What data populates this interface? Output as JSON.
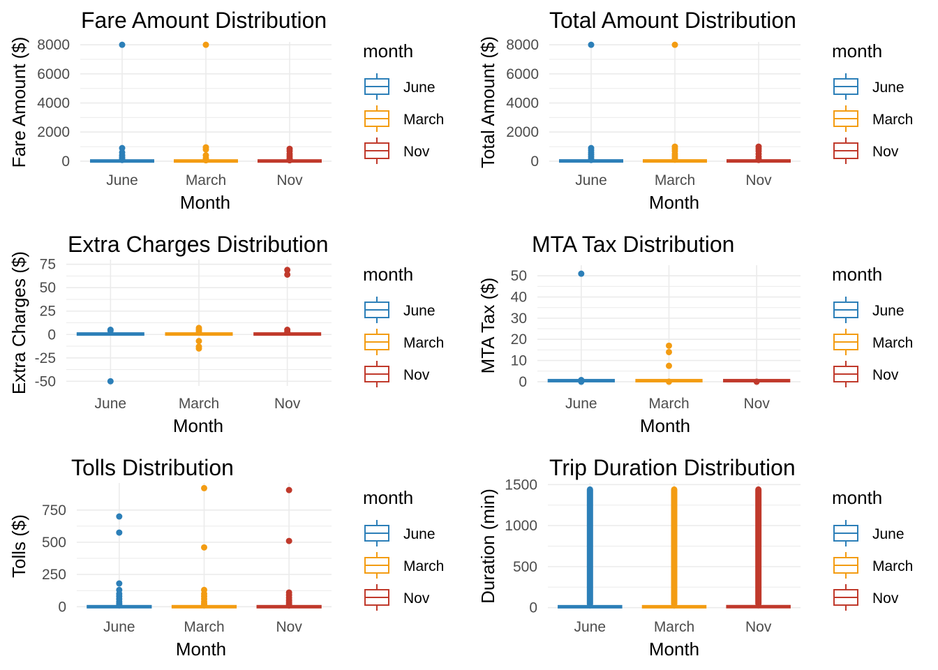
{
  "colors": {
    "June": "#2c7fb8",
    "March": "#f39c12",
    "Nov": "#c0392b",
    "grid": "#ebebeb"
  },
  "chart_data": [
    {
      "type": "boxplot",
      "title": "Fare Amount Distribution",
      "xlabel": "Month",
      "ylabel": "Fare Amount ($)",
      "categories": [
        "June",
        "March",
        "Nov"
      ],
      "ylim": [
        -100,
        8200
      ],
      "yticks": [
        0,
        2000,
        4000,
        6000,
        8000
      ],
      "yticklabels": [
        "0",
        "2000",
        "4000",
        "6000",
        "8000"
      ],
      "legend": {
        "title": "month",
        "entries": [
          "June",
          "March",
          "Nov"
        ],
        "position": "right"
      },
      "series": [
        {
          "name": "June",
          "box": [
            0,
            12,
            30
          ],
          "outliers": [
            8000,
            900,
            600,
            400,
            250,
            150,
            80
          ]
        },
        {
          "name": "March",
          "box": [
            0,
            12,
            30
          ],
          "outliers": [
            8000,
            950,
            800,
            400,
            200,
            100,
            60
          ]
        },
        {
          "name": "Nov",
          "box": [
            0,
            12,
            30
          ],
          "outliers": [
            850,
            700,
            500,
            350,
            200,
            120,
            60
          ]
        }
      ]
    },
    {
      "type": "boxplot",
      "title": "Total Amount Distribution",
      "xlabel": "Month",
      "ylabel": "Total Amount ($)",
      "categories": [
        "June",
        "March",
        "Nov"
      ],
      "ylim": [
        -100,
        8200
      ],
      "yticks": [
        0,
        2000,
        4000,
        6000,
        8000
      ],
      "yticklabels": [
        "0",
        "2000",
        "4000",
        "6000",
        "8000"
      ],
      "legend": {
        "title": "month",
        "entries": [
          "June",
          "March",
          "Nov"
        ],
        "position": "right"
      },
      "series": [
        {
          "name": "June",
          "box": [
            0,
            15,
            35
          ],
          "outliers": [
            8000,
            900,
            750,
            600,
            450,
            300,
            150,
            80
          ]
        },
        {
          "name": "March",
          "box": [
            0,
            15,
            35
          ],
          "outliers": [
            8000,
            1000,
            850,
            700,
            500,
            350,
            200,
            100
          ]
        },
        {
          "name": "Nov",
          "box": [
            0,
            15,
            35
          ],
          "outliers": [
            1000,
            850,
            700,
            500,
            300,
            150,
            80
          ]
        }
      ]
    },
    {
      "type": "boxplot",
      "title": "Extra Charges Distribution",
      "xlabel": "Month",
      "ylabel": "Extra Charges ($)",
      "categories": [
        "June",
        "March",
        "Nov"
      ],
      "ylim": [
        -55,
        80
      ],
      "yticks": [
        -50,
        -25,
        0,
        25,
        50,
        75
      ],
      "yticklabels": [
        "-50",
        "-25",
        "0",
        "25",
        "50",
        "75"
      ],
      "legend": {
        "title": "month",
        "entries": [
          "June",
          "March",
          "Nov"
        ],
        "position": "right"
      },
      "series": [
        {
          "name": "June",
          "box": [
            0,
            0.5,
            1
          ],
          "outliers": [
            5,
            4,
            -50
          ]
        },
        {
          "name": "March",
          "box": [
            0,
            0.5,
            1
          ],
          "outliers": [
            7,
            5,
            3,
            -7,
            -13,
            -15
          ]
        },
        {
          "name": "Nov",
          "box": [
            0,
            0.5,
            1
          ],
          "outliers": [
            69,
            64,
            5,
            3
          ]
        }
      ]
    },
    {
      "type": "boxplot",
      "title": "MTA Tax Distribution",
      "xlabel": "Month",
      "ylabel": "MTA Tax ($)",
      "categories": [
        "June",
        "March",
        "Nov"
      ],
      "ylim": [
        -2,
        55
      ],
      "yticks": [
        0,
        10,
        20,
        30,
        40,
        50
      ],
      "yticklabels": [
        "0",
        "10",
        "20",
        "30",
        "40",
        "50"
      ],
      "legend": {
        "title": "month",
        "entries": [
          "June",
          "March",
          "Nov"
        ],
        "position": "right"
      },
      "series": [
        {
          "name": "June",
          "box": [
            0.5,
            0.5,
            0.5
          ],
          "outliers": [
            51,
            0.8,
            0
          ]
        },
        {
          "name": "March",
          "box": [
            0.5,
            0.5,
            0.5
          ],
          "outliers": [
            17,
            14,
            7.5,
            0
          ]
        },
        {
          "name": "Nov",
          "box": [
            0.5,
            0.5,
            0.5
          ],
          "outliers": [
            0
          ]
        }
      ]
    },
    {
      "type": "boxplot",
      "title": "Tolls Distribution",
      "xlabel": "Month",
      "ylabel": "Tolls ($)",
      "categories": [
        "June",
        "March",
        "Nov"
      ],
      "ylim": [
        -20,
        960
      ],
      "yticks": [
        0,
        250,
        500,
        750
      ],
      "yticklabels": [
        "0",
        "250",
        "500",
        "750"
      ],
      "legend": {
        "title": "month",
        "entries": [
          "June",
          "March",
          "Nov"
        ],
        "position": "right"
      },
      "series": [
        {
          "name": "June",
          "box": [
            0,
            0,
            0
          ],
          "outliers": [
            700,
            575,
            180,
            130,
            100,
            80,
            60,
            40,
            25,
            12
          ]
        },
        {
          "name": "March",
          "box": [
            0,
            0,
            0
          ],
          "outliers": [
            920,
            460,
            130,
            100,
            80,
            60,
            40,
            25,
            12
          ]
        },
        {
          "name": "Nov",
          "box": [
            0,
            0,
            0
          ],
          "outliers": [
            905,
            510,
            110,
            90,
            70,
            50,
            35,
            20,
            10
          ]
        }
      ]
    },
    {
      "type": "boxplot",
      "title": "Trip Duration Distribution",
      "xlabel": "Month",
      "ylabel": "Duration (min)",
      "categories": [
        "June",
        "March",
        "Nov"
      ],
      "ylim": [
        -20,
        1520
      ],
      "yticks": [
        0,
        500,
        1000,
        1500
      ],
      "yticklabels": [
        "0",
        "500",
        "1000",
        "1500"
      ],
      "legend": {
        "title": "month",
        "entries": [
          "June",
          "March",
          "Nov"
        ],
        "position": "right"
      },
      "series": [
        {
          "name": "June",
          "box": [
            5,
            11,
            20
          ],
          "whisker_max": 45,
          "outlier_range": [
            45,
            1440
          ]
        },
        {
          "name": "March",
          "box": [
            5,
            11,
            20
          ],
          "whisker_max": 45,
          "outlier_range": [
            45,
            1440
          ]
        },
        {
          "name": "Nov",
          "box": [
            5,
            12,
            22
          ],
          "whisker_max": 48,
          "outlier_range": [
            48,
            1440
          ]
        }
      ]
    }
  ]
}
